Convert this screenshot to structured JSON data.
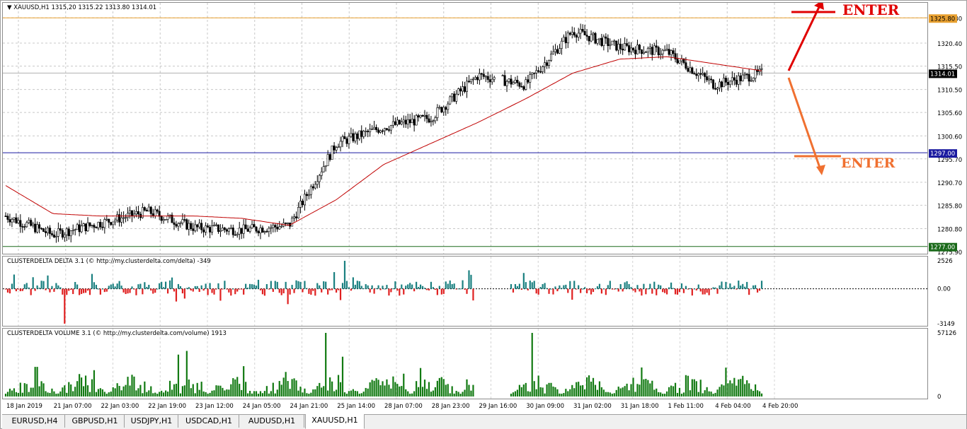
{
  "chart_header": {
    "symbol": "XAUUSD,H1",
    "ohlc": "1315,20 1315.22 1313.80 1314.01"
  },
  "main_price_axis": {
    "ticks": [
      "1325.80",
      "1320.40",
      "1315.50",
      "1310.50",
      "1305.60",
      "1300.60",
      "1295.70",
      "1290.70",
      "1285.80",
      "1280.80",
      "1275.90"
    ],
    "marker_1325": "1325.80",
    "marker_current": "1314.01",
    "marker_1297": "1297.00",
    "marker_1277": "1277.00"
  },
  "annotations": {
    "enter_top": "ENTER",
    "enter_bottom": "ENTER",
    "top_color": "#e00000",
    "bottom_color": "#f07030"
  },
  "delta_indicator": {
    "title": "CLUSTERDELTA DELTA 3.1 (© http://my.clusterdelta.com/delta) -349",
    "ticks": [
      "2526",
      "0.00",
      "-3149"
    ]
  },
  "volume_indicator": {
    "title": "CLUSTERDELTA VOLUME 3.1 (© http://my.clusterdelta.com/volume) 1913",
    "ticks": [
      "57126",
      "0"
    ]
  },
  "time_axis": {
    "labels": [
      "18 Jan 2019",
      "21 Jan 07:00",
      "22 Jan 03:00",
      "22 Jan 19:00",
      "23 Jan 12:00",
      "24 Jan 05:00",
      "24 Jan 21:00",
      "25 Jan 14:00",
      "28 Jan 07:00",
      "28 Jan 23:00",
      "29 Jan 16:00",
      "30 Jan 09:00",
      "31 Jan 02:00",
      "31 Jan 18:00",
      "1 Feb 11:00",
      "4 Feb 04:00",
      "4 Feb 20:00"
    ]
  },
  "tabs": [
    "EURUSD,H4",
    "GBPUSD,H1",
    "USDJPY,H1",
    "USDCAD,H1",
    "AUDUSD,H1",
    "XAUUSD,H1"
  ],
  "active_tab": "XAUUSD,H1",
  "chart_data": {
    "type": "line",
    "title": "XAUUSD,H1",
    "x": [
      "18 Jan 2019",
      "21 Jan 07:00",
      "22 Jan 03:00",
      "22 Jan 19:00",
      "23 Jan 12:00",
      "24 Jan 05:00",
      "24 Jan 21:00",
      "25 Jan 14:00",
      "28 Jan 07:00",
      "28 Jan 23:00",
      "29 Jan 16:00",
      "30 Jan 09:00",
      "31 Jan 02:00",
      "31 Jan 18:00",
      "1 Feb 11:00",
      "4 Feb 04:00",
      "4 Feb 20:00"
    ],
    "series": [
      {
        "values": [
          1283.5,
          1279.5,
          1282.0,
          1284.5,
          1281.0,
          1280.5,
          1281.5,
          1299.0,
          1302.5,
          1304.5,
          1313.5,
          1311.5,
          1323.0,
          1319.5,
          1318.5,
          1311.5,
          1314.0
        ]
      },
      {
        "values": [
          1290.0,
          1284.0,
          1283.5,
          1283.5,
          1283.5,
          1283.0,
          1281.5,
          1287.0,
          1294.5,
          1299.0,
          1303.5,
          1308.5,
          1314.0,
          1317.0,
          1317.5,
          1316.0,
          1314.5
        ]
      }
    ],
    "horizontal_levels": [
      1325.8,
      1297.0,
      1277.0
    ],
    "ylim": [
      1275.9,
      1327.5
    ],
    "grid": true,
    "delta": {
      "ylim": [
        -3149,
        2526
      ],
      "min_value": -3149,
      "max_value": 2526,
      "last_value": -349
    },
    "volume": {
      "ylim": [
        0,
        57126
      ],
      "max_value": 57126,
      "last_value": 1913
    }
  }
}
